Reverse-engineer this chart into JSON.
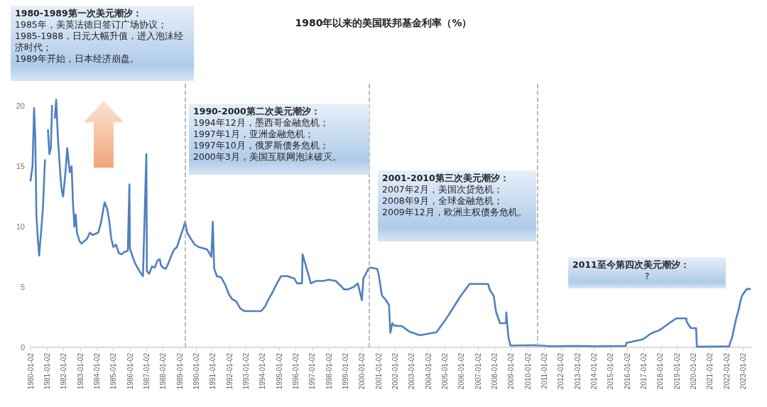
{
  "chart_data": {
    "type": "line",
    "title": "1980年以来的美国联邦基金利率（%）",
    "x": [
      "1980-01-02",
      "1980-02-15",
      "1980-03-20",
      "1980-04-15",
      "1980-05-10",
      "1980-06-10",
      "1980-07-10",
      "1980-08-20",
      "1980-10-01",
      "1980-11-15",
      "1980-12-20",
      "1981-01-20",
      "1981-02-20",
      "1981-03-25",
      "1981-04-20",
      "1981-05-10",
      "1981-06-20",
      "1981-07-20",
      "1981-08-25",
      "1981-09-20",
      "1981-10-25",
      "1981-11-20",
      "1981-12-20",
      "1982-02-10",
      "1982-03-20",
      "1982-05-15",
      "1982-06-25",
      "1982-07-25",
      "1982-08-25",
      "1982-09-25",
      "1982-10-20",
      "1982-12-15",
      "1983-02-01",
      "1983-04-01",
      "1983-06-01",
      "1983-08-01",
      "1983-10-01",
      "1983-12-01",
      "1984-02-01",
      "1984-04-01",
      "1984-06-20",
      "1984-08-15",
      "1984-10-01",
      "1984-11-15",
      "1985-01-01",
      "1985-03-01",
      "1985-05-01",
      "1985-07-01",
      "1985-09-01",
      "1985-11-15",
      "1985-12-20",
      "1985-12-31",
      "1986-03-01",
      "1986-05-01",
      "1986-08-01",
      "1986-10-15",
      "1986-12-28",
      "1987-01-10",
      "1987-03-01",
      "1987-05-01",
      "1987-07-01",
      "1987-09-01",
      "1987-10-20",
      "1987-11-15",
      "1988-01-01",
      "1988-03-01",
      "1988-05-01",
      "1988-07-01",
      "1988-09-01",
      "1988-11-01",
      "1989-01-01",
      "1989-03-15",
      "1989-05-01",
      "1989-06-15",
      "1989-09-01",
      "1989-12-01",
      "1990-03-01",
      "1990-06-01",
      "1990-09-01",
      "1990-12-01",
      "1990-12-31",
      "1991-02-01",
      "1991-04-01",
      "1991-07-01",
      "1991-10-01",
      "1991-12-20",
      "1992-03-01",
      "1992-06-01",
      "1992-09-01",
      "1992-12-01",
      "1993-03-01",
      "1993-06-01",
      "1993-09-01",
      "1993-12-01",
      "1994-03-01",
      "1994-05-01",
      "1994-08-01",
      "1994-11-15",
      "1995-02-15",
      "1995-07-01",
      "1995-12-01",
      "1996-02-01",
      "1996-05-20",
      "1996-06-01",
      "1996-12-01",
      "1997-04-01",
      "1997-09-01",
      "1997-12-31",
      "1998-06-01",
      "1998-10-15",
      "1998-12-01",
      "1999-03-01",
      "1999-07-01",
      "1999-10-01",
      "1999-12-31",
      "2000-02-01",
      "2000-05-20",
      "2000-07-01",
      "2000-12-01",
      "2001-01-05",
      "2001-03-15",
      "2001-06-15",
      "2001-08-20",
      "2001-09-17",
      "2001-11-01",
      "2001-12-15",
      "2002-06-01",
      "2002-11-15",
      "2003-06-30",
      "2004-06-30",
      "2004-12-31",
      "2005-06-30",
      "2005-12-15",
      "2006-06-30",
      "2007-08-10",
      "2007-09-20",
      "2007-12-15",
      "2008-01-30",
      "2008-04-30",
      "2008-09-10",
      "2008-09-15",
      "2008-10-30",
      "2008-12-16",
      "2010-06-01",
      "2011-06-01",
      "2013-01-01",
      "2014-01-01",
      "2015-12-01",
      "2015-12-16",
      "2016-12-14",
      "2017-03-15",
      "2017-06-14",
      "2017-12-13",
      "2018-03-21",
      "2018-06-13",
      "2018-09-26",
      "2018-12-19",
      "2019-07-31",
      "2019-08-01",
      "2019-10-31",
      "2020-03-01",
      "2020-03-16",
      "2022-03-01",
      "2022-03-16",
      "2022-05-04",
      "2022-06-15",
      "2022-07-27",
      "2022-09-21",
      "2022-11-02",
      "2022-12-14",
      "2023-02-01",
      "2023-03-22",
      "2023-06-01"
    ],
    "series": [
      {
        "color": "#4f81bd",
        "values": [
          13.8,
          15.0,
          19.8,
          17.5,
          11.0,
          9.0,
          7.6,
          9.5,
          11.5,
          15.5,
          null,
          18.0,
          16.0,
          16.5,
          20.0,
          null,
          19.0,
          20.5,
          17.5,
          16.0,
          14.0,
          13.0,
          12.5,
          14.5,
          16.5,
          14.5,
          15.0,
          12.0,
          10.0,
          11.0,
          9.5,
          8.8,
          8.6,
          8.8,
          9.0,
          9.5,
          9.3,
          9.4,
          9.5,
          10.3,
          12.0,
          11.5,
          10.5,
          9.0,
          8.3,
          8.5,
          7.8,
          7.7,
          7.9,
          8.0,
          13.5,
          8.2,
          7.5,
          6.9,
          6.3,
          5.9,
          16.0,
          6.3,
          6.1,
          6.7,
          6.6,
          7.2,
          7.3,
          6.8,
          6.6,
          6.5,
          7.0,
          7.6,
          8.1,
          8.3,
          9.0,
          9.8,
          10.4,
          9.5,
          9.0,
          8.5,
          8.3,
          8.2,
          8.1,
          7.5,
          10.4,
          6.5,
          5.9,
          5.8,
          5.2,
          4.4,
          4.0,
          3.8,
          3.2,
          3.0,
          3.0,
          3.0,
          3.0,
          3.0,
          3.4,
          3.9,
          4.5,
          5.3,
          5.9,
          5.9,
          5.7,
          5.3,
          5.3,
          7.7,
          5.3,
          5.5,
          5.5,
          5.6,
          5.5,
          5.0,
          4.8,
          4.8,
          5.0,
          5.3,
          3.9,
          5.7,
          6.5,
          6.6,
          6.5,
          6.0,
          4.3,
          3.9,
          3.5,
          1.2,
          2.0,
          1.8,
          1.75,
          1.3,
          1.0,
          1.25,
          2.2,
          3.25,
          4.25,
          5.25,
          5.25,
          4.75,
          4.25,
          3.0,
          2.0,
          2.0,
          2.9,
          0.9,
          0.15,
          0.18,
          0.09,
          0.12,
          0.09,
          0.12,
          0.37,
          0.66,
          0.91,
          1.16,
          1.42,
          1.68,
          1.91,
          2.18,
          2.4,
          2.4,
          2.13,
          1.6,
          1.58,
          0.05,
          0.08,
          0.33,
          0.83,
          1.58,
          2.33,
          3.08,
          3.83,
          4.33,
          4.58,
          4.83,
          4.83
        ]
      }
    ],
    "xlim": [
      "1980-01-02",
      "2023-07-01"
    ],
    "xticks": [
      "1980-01-02",
      "1981-01-02",
      "1982-01-02",
      "1983-01-02",
      "1984-01-02",
      "1985-01-02",
      "1986-01-02",
      "1987-01-02",
      "1988-01-02",
      "1989-01-02",
      "1990-01-02",
      "1991-01-02",
      "1992-01-02",
      "1993-01-02",
      "1994-01-02",
      "1995-01-02",
      "1996-01-02",
      "1997-01-02",
      "1998-01-02",
      "1999-01-02",
      "2000-01-02",
      "2001-01-02",
      "2002-01-02",
      "2003-01-02",
      "2004-01-02",
      "2005-01-02",
      "2006-01-02",
      "2007-01-02",
      "2008-01-02",
      "2009-01-02",
      "2010-01-02",
      "2011-01-02",
      "2012-01-02",
      "2013-01-02",
      "2014-01-02",
      "2015-01-02",
      "2016-01-02",
      "2017-01-02",
      "2018-01-02",
      "2019-01-02",
      "2020-01-02",
      "2021-01-02",
      "2022-01-02",
      "2023-01-02"
    ],
    "ylim": [
      0,
      22
    ],
    "yticks": [
      0,
      5,
      10,
      15,
      20
    ],
    "grid": false,
    "marker": "none",
    "line_style": "solid",
    "ref_lines": [
      {
        "axis": "x",
        "value": "1989-05-01",
        "color": "#aaaaaa",
        "line_style": "dashed"
      },
      {
        "axis": "x",
        "value": "2000-06-01",
        "color": "#aaaaaa",
        "line_style": "dashed"
      },
      {
        "axis": "x",
        "value": "2010-08-01",
        "color": "#aaaaaa",
        "line_style": "dashed"
      }
    ],
    "annotations": [
      "1980-1989第一次美元潮汐：\n1985年，美英法德日签订广场协议；\n1985-1988，日元大幅升值，进入泡沫经济时代；\n1989年开始，日本经济崩盘。",
      "1990-2000第二次美元潮汐：\n1994年12月，墨西哥金融危机；\n1997年1月，亚洲金融危机；\n1997年10月，俄罗斯债务危机；\n2000年3月，美国互联网泡沫破灭。",
      "2001-2010第三次美元潮汐：\n2007年2月，美国次贷危机；\n2008年9月，全球金融危机；\n2009年12月，欧洲主权债务危机。",
      "2011至今第四次美元潮汐：\n?"
    ]
  }
}
